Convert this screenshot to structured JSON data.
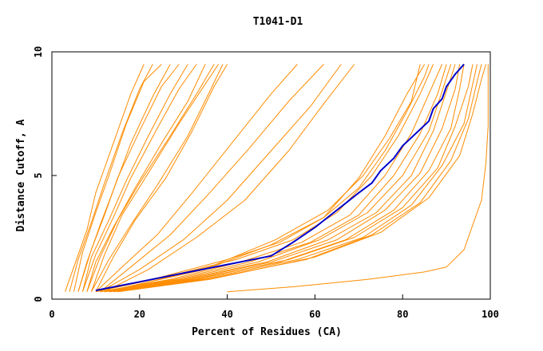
{
  "chart_data": {
    "type": "line",
    "title": "T1041-D1",
    "xlabel": "Percent of Residues (CA)",
    "ylabel": "Distance Cutoff, A",
    "xlim": [
      0,
      100
    ],
    "ylim": [
      0,
      10
    ],
    "xticks": [
      "0",
      "20",
      "40",
      "60",
      "80",
      "100"
    ],
    "yticks": [
      "0",
      "5",
      "10"
    ],
    "grid": false,
    "colors": {
      "models": "#ff8c00",
      "highlight": "#0000cc"
    },
    "series": [
      {
        "group": "steep",
        "points": [
          [
            3,
            0.3
          ],
          [
            5,
            1.3
          ],
          [
            8,
            2.8
          ],
          [
            10,
            4.3
          ],
          [
            14,
            6.3
          ],
          [
            18,
            8.3
          ],
          [
            21,
            9.5
          ]
        ]
      },
      {
        "group": "steep",
        "points": [
          [
            4,
            0.3
          ],
          [
            6,
            1.6
          ],
          [
            9,
            3.1
          ],
          [
            12,
            4.7
          ],
          [
            16,
            6.7
          ],
          [
            20,
            8.5
          ],
          [
            23,
            9.5
          ]
        ]
      },
      {
        "group": "steep",
        "points": [
          [
            5,
            0.3
          ],
          [
            7,
            1.9
          ],
          [
            10,
            3.5
          ],
          [
            13,
            5.0
          ],
          [
            17,
            7.1
          ],
          [
            21,
            8.8
          ],
          [
            25,
            9.5
          ]
        ]
      },
      {
        "group": "steep",
        "points": [
          [
            6,
            0.3
          ],
          [
            8,
            1.5
          ],
          [
            11,
            3.0
          ],
          [
            14,
            4.4
          ],
          [
            18,
            6.3
          ],
          [
            23,
            8.2
          ],
          [
            27,
            9.5
          ]
        ]
      },
      {
        "group": "steep",
        "points": [
          [
            6,
            0.3
          ],
          [
            9,
            2.0
          ],
          [
            12,
            3.4
          ],
          [
            15,
            4.9
          ],
          [
            20,
            6.8
          ],
          [
            25,
            8.6
          ],
          [
            29,
            9.5
          ]
        ]
      },
      {
        "group": "steep",
        "points": [
          [
            7,
            0.3
          ],
          [
            9,
            1.7
          ],
          [
            13,
            3.2
          ],
          [
            17,
            4.8
          ],
          [
            22,
            6.6
          ],
          [
            27,
            8.3
          ],
          [
            31,
            9.5
          ]
        ]
      },
      {
        "group": "steep",
        "points": [
          [
            7,
            0.3
          ],
          [
            10,
            1.8
          ],
          [
            14,
            3.3
          ],
          [
            18,
            4.9
          ],
          [
            24,
            6.9
          ],
          [
            29,
            8.5
          ],
          [
            33,
            9.5
          ]
        ]
      },
      {
        "group": "steep",
        "points": [
          [
            8,
            0.3
          ],
          [
            10,
            1.5
          ],
          [
            14,
            2.9
          ],
          [
            19,
            4.5
          ],
          [
            25,
            6.3
          ],
          [
            31,
            8.0
          ],
          [
            35,
            9.5
          ]
        ]
      },
      {
        "group": "steep",
        "points": [
          [
            8,
            0.3
          ],
          [
            11,
            1.7
          ],
          [
            15,
            3.2
          ],
          [
            20,
            4.7
          ],
          [
            27,
            6.6
          ],
          [
            33,
            8.3
          ],
          [
            37,
            9.5
          ]
        ]
      },
      {
        "group": "steep",
        "points": [
          [
            9,
            0.3
          ],
          [
            12,
            1.8
          ],
          [
            16,
            3.4
          ],
          [
            22,
            5.1
          ],
          [
            29,
            7.1
          ],
          [
            35,
            8.7
          ],
          [
            38,
            9.5
          ]
        ]
      },
      {
        "group": "steep",
        "points": [
          [
            9,
            0.3
          ],
          [
            13,
            1.6
          ],
          [
            18,
            3.0
          ],
          [
            24,
            4.6
          ],
          [
            31,
            6.6
          ],
          [
            36,
            8.4
          ],
          [
            39,
            9.5
          ]
        ]
      },
      {
        "group": "steep",
        "points": [
          [
            10,
            0.3
          ],
          [
            14,
            1.7
          ],
          [
            19,
            3.2
          ],
          [
            26,
            4.9
          ],
          [
            32,
            6.8
          ],
          [
            37,
            8.6
          ],
          [
            40,
            9.5
          ]
        ]
      },
      {
        "group": "middle",
        "points": [
          [
            10,
            0.3
          ],
          [
            16,
            1.3
          ],
          [
            24,
            2.6
          ],
          [
            32,
            4.3
          ],
          [
            41,
            6.3
          ],
          [
            50,
            8.3
          ],
          [
            56,
            9.5
          ]
        ]
      },
      {
        "group": "middle",
        "points": [
          [
            11,
            0.3
          ],
          [
            18,
            1.3
          ],
          [
            27,
            2.6
          ],
          [
            36,
            4.3
          ],
          [
            45,
            6.1
          ],
          [
            54,
            8.0
          ],
          [
            62,
            9.5
          ]
        ]
      },
      {
        "group": "middle",
        "points": [
          [
            11,
            0.3
          ],
          [
            20,
            1.2
          ],
          [
            30,
            2.4
          ],
          [
            40,
            4.0
          ],
          [
            50,
            6.0
          ],
          [
            59,
            7.8
          ],
          [
            66,
            9.5
          ]
        ]
      },
      {
        "group": "middle",
        "points": [
          [
            12,
            0.3
          ],
          [
            22,
            1.2
          ],
          [
            33,
            2.5
          ],
          [
            44,
            4.0
          ],
          [
            54,
            6.0
          ],
          [
            62,
            7.9
          ],
          [
            69,
            9.5
          ]
        ]
      },
      {
        "group": "shallow",
        "points": [
          [
            10,
            0.3
          ],
          [
            25,
            0.9
          ],
          [
            40,
            1.6
          ],
          [
            52,
            2.3
          ],
          [
            62,
            3.3
          ],
          [
            70,
            4.9
          ],
          [
            76,
            6.6
          ],
          [
            81,
            8.3
          ],
          [
            85,
            9.5
          ]
        ]
      },
      {
        "group": "shallow",
        "points": [
          [
            10,
            0.3
          ],
          [
            26,
            0.9
          ],
          [
            42,
            1.6
          ],
          [
            55,
            2.4
          ],
          [
            65,
            3.5
          ],
          [
            73,
            5.0
          ],
          [
            79,
            6.6
          ],
          [
            84,
            8.3
          ],
          [
            87,
            9.5
          ]
        ]
      },
      {
        "group": "shallow",
        "points": [
          [
            11,
            0.3
          ],
          [
            27,
            0.8
          ],
          [
            43,
            1.5
          ],
          [
            57,
            2.3
          ],
          [
            68,
            3.4
          ],
          [
            76,
            5.0
          ],
          [
            82,
            6.7
          ],
          [
            86,
            8.3
          ],
          [
            89,
            9.5
          ]
        ]
      },
      {
        "group": "shallow",
        "points": [
          [
            11,
            0.3
          ],
          [
            28,
            0.8
          ],
          [
            45,
            1.5
          ],
          [
            59,
            2.3
          ],
          [
            70,
            3.4
          ],
          [
            78,
            5.0
          ],
          [
            84,
            6.7
          ],
          [
            88,
            8.3
          ],
          [
            90,
            9.5
          ]
        ]
      },
      {
        "group": "shallow",
        "points": [
          [
            12,
            0.3
          ],
          [
            29,
            0.8
          ],
          [
            47,
            1.5
          ],
          [
            61,
            2.4
          ],
          [
            72,
            3.5
          ],
          [
            80,
            5.0
          ],
          [
            86,
            6.8
          ],
          [
            89,
            8.4
          ],
          [
            91,
            9.5
          ]
        ]
      },
      {
        "group": "shallow",
        "points": [
          [
            12,
            0.3
          ],
          [
            30,
            0.8
          ],
          [
            49,
            1.5
          ],
          [
            63,
            2.4
          ],
          [
            74,
            3.5
          ],
          [
            82,
            5.0
          ],
          [
            87,
            6.8
          ],
          [
            90,
            8.4
          ],
          [
            92,
            9.5
          ]
        ]
      },
      {
        "group": "shallow",
        "points": [
          [
            13,
            0.3
          ],
          [
            31,
            0.8
          ],
          [
            50,
            1.5
          ],
          [
            65,
            2.4
          ],
          [
            76,
            3.6
          ],
          [
            84,
            5.1
          ],
          [
            89,
            6.9
          ],
          [
            92,
            8.5
          ],
          [
            93,
            9.5
          ]
        ]
      },
      {
        "group": "shallow",
        "points": [
          [
            13,
            0.3
          ],
          [
            32,
            0.8
          ],
          [
            52,
            1.5
          ],
          [
            67,
            2.4
          ],
          [
            78,
            3.6
          ],
          [
            86,
            5.2
          ],
          [
            91,
            6.9
          ],
          [
            93,
            8.5
          ],
          [
            94,
            9.5
          ]
        ]
      },
      {
        "group": "shallow",
        "points": [
          [
            14,
            0.3
          ],
          [
            33,
            0.8
          ],
          [
            54,
            1.6
          ],
          [
            69,
            2.5
          ],
          [
            80,
            3.7
          ],
          [
            88,
            5.3
          ],
          [
            92,
            7.0
          ],
          [
            95,
            8.6
          ],
          [
            96,
            9.5
          ]
        ]
      },
      {
        "group": "shallow",
        "points": [
          [
            14,
            0.3
          ],
          [
            34,
            0.8
          ],
          [
            56,
            1.6
          ],
          [
            71,
            2.5
          ],
          [
            82,
            3.8
          ],
          [
            89,
            5.4
          ],
          [
            94,
            7.1
          ],
          [
            96,
            8.7
          ],
          [
            97,
            9.5
          ]
        ]
      },
      {
        "group": "shallow",
        "points": [
          [
            15,
            0.3
          ],
          [
            35,
            0.8
          ],
          [
            58,
            1.6
          ],
          [
            73,
            2.6
          ],
          [
            84,
            3.9
          ],
          [
            91,
            5.6
          ],
          [
            95,
            7.3
          ],
          [
            97,
            8.8
          ],
          [
            98,
            9.5
          ]
        ]
      },
      {
        "group": "shallow",
        "points": [
          [
            15,
            0.3
          ],
          [
            36,
            0.8
          ],
          [
            60,
            1.7
          ],
          [
            75,
            2.7
          ],
          [
            86,
            4.1
          ],
          [
            93,
            5.8
          ],
          [
            96,
            7.5
          ],
          [
            98,
            8.9
          ],
          [
            99,
            9.5
          ]
        ]
      },
      {
        "group": "shallow",
        "points": [
          [
            12,
            0.3
          ],
          [
            35,
            1.2
          ],
          [
            50,
            2.2
          ],
          [
            62,
            3.3
          ],
          [
            70,
            4.5
          ],
          [
            76,
            6.0
          ],
          [
            81,
            7.6
          ],
          [
            85,
            9.0
          ],
          [
            86,
            9.5
          ]
        ]
      },
      {
        "group": "shallow",
        "points": [
          [
            13,
            0.3
          ],
          [
            36,
            1.3
          ],
          [
            51,
            2.4
          ],
          [
            63,
            3.6
          ],
          [
            71,
            5.0
          ],
          [
            77,
            6.5
          ],
          [
            82,
            8.0
          ],
          [
            84,
            9.5
          ]
        ]
      },
      {
        "group": "outlier",
        "points": [
          [
            40,
            0.3
          ],
          [
            55,
            0.5
          ],
          [
            72,
            0.8
          ],
          [
            85,
            1.1
          ],
          [
            90,
            1.3
          ],
          [
            94,
            2.0
          ],
          [
            96,
            3.0
          ],
          [
            98,
            4.0
          ],
          [
            99,
            5.5
          ],
          [
            99.5,
            7.0
          ],
          [
            99.5,
            9.5
          ]
        ]
      },
      {
        "group": "highlight",
        "points": [
          [
            10,
            0.35
          ],
          [
            20,
            0.7
          ],
          [
            30,
            1.05
          ],
          [
            40,
            1.4
          ],
          [
            50,
            1.75
          ],
          [
            55,
            2.3
          ],
          [
            60,
            2.9
          ],
          [
            65,
            3.6
          ],
          [
            70,
            4.3
          ],
          [
            73,
            4.7
          ],
          [
            75,
            5.2
          ],
          [
            78,
            5.7
          ],
          [
            80,
            6.2
          ],
          [
            83,
            6.7
          ],
          [
            86,
            7.2
          ],
          [
            87,
            7.7
          ],
          [
            89,
            8.1
          ],
          [
            90,
            8.6
          ],
          [
            92,
            9.1
          ],
          [
            94,
            9.5
          ]
        ]
      }
    ]
  }
}
